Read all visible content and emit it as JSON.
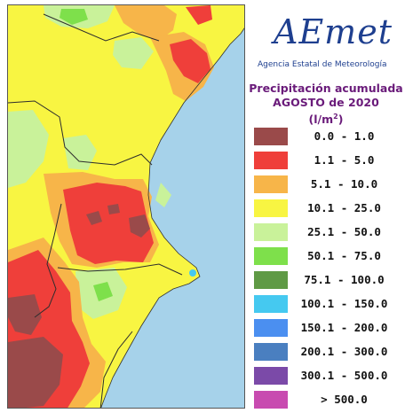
{
  "agency": {
    "logo_text": "AEmet",
    "name": "Agencia Estatal de Meteorología"
  },
  "map_title": {
    "line1": "Precipitación acumulada",
    "line2": "AGOSTO de 2020",
    "unit_base": "(l/m",
    "unit_exp": "2",
    "unit_close": ")"
  },
  "legend": [
    {
      "label": "0.0 - 1.0",
      "color": "#9a4a4a"
    },
    {
      "label": "1.1 - 5.0",
      "color": "#ef3f3a"
    },
    {
      "label": "5.1 - 10.0",
      "color": "#f7b549"
    },
    {
      "label": "10.1 - 25.0",
      "color": "#f8f542"
    },
    {
      "label": "25.1 - 50.0",
      "color": "#c9f29a"
    },
    {
      "label": "50.1 - 75.0",
      "color": "#7ee04b"
    },
    {
      "label": "75.1 - 100.0",
      "color": "#5f9a45"
    },
    {
      "label": "100.1 - 150.0",
      "color": "#45c9f0"
    },
    {
      "label": "150.1 - 200.0",
      "color": "#4b8ff0"
    },
    {
      "label": "200.1 - 300.0",
      "color": "#4a7fc0"
    },
    {
      "label": "300.1 - 500.0",
      "color": "#7b4aa8"
    },
    {
      "label": "> 500.0",
      "color": "#c84bb0"
    }
  ],
  "map_colors": {
    "sea": "#a6d2ea",
    "border": "#2d2d2d"
  }
}
